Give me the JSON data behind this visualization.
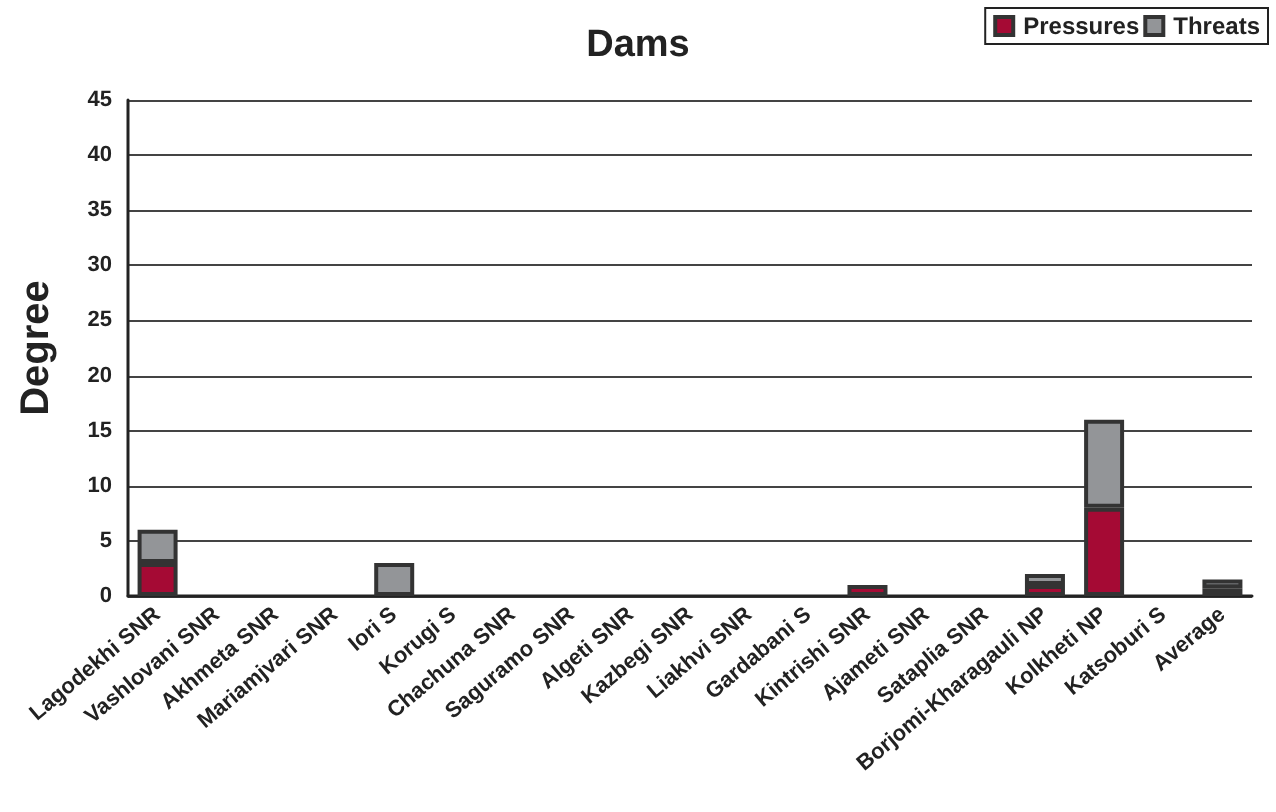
{
  "chart_data": {
    "type": "bar",
    "title": "Dams",
    "ylabel": "Degree",
    "categories": [
      "Lagodekhi SNR",
      "Vashlovani SNR",
      "Akhmeta SNR",
      "Mariamjvari SNR",
      "Iori S",
      "Korugi S",
      "Chachuna SNR",
      "Saguramo SNR",
      "Algeti SNR",
      "Kazbegi SNR",
      "Liakhvi SNR",
      "Gardabani S",
      "Kintrishi SNR",
      "Ajameti SNR",
      "Sataplia SNR",
      "Borjomi-Kharagauli NP",
      "Kolkheti NP",
      "Katsoburi S",
      "Average"
    ],
    "series": [
      {
        "name": "Pressures",
        "color": "#a50a34",
        "values": [
          3,
          0,
          0,
          0,
          0,
          0,
          0,
          0,
          0,
          0,
          0,
          0,
          1,
          0,
          0,
          1,
          8,
          0,
          0.7
        ]
      },
      {
        "name": "Threats",
        "color": "#939598",
        "values": [
          3,
          0,
          0,
          0,
          3,
          0,
          0,
          0,
          0,
          0,
          0,
          0,
          0,
          0,
          0,
          1,
          8,
          0,
          0.8
        ]
      }
    ],
    "stacked": true,
    "ylim": [
      0,
      45
    ],
    "yticks": [
      0,
      5,
      10,
      15,
      20,
      25,
      30,
      35,
      40,
      45
    ],
    "grid": "y",
    "legend": "top right"
  }
}
